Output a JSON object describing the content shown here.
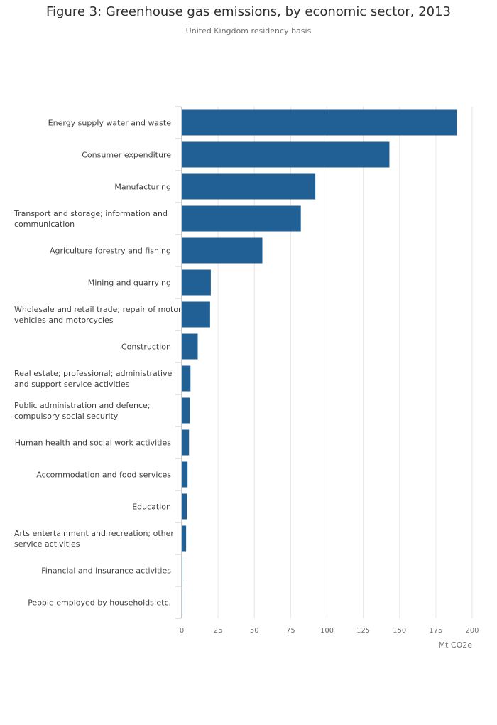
{
  "title": "Figure 3: Greenhouse gas emissions, by economic sector, 2013",
  "subtitle": "United Kingdom residency basis",
  "colors": {
    "bar": "#206095",
    "grid": "#e6e6e6",
    "axis": "#c8c8c8",
    "text": "#414042"
  },
  "chart_data": {
    "type": "bar",
    "orientation": "horizontal",
    "title": "Figure 3: Greenhouse gas emissions, by economic sector, 2013",
    "subtitle": "United Kingdom residency basis",
    "categories": [
      "Energy supply water and waste",
      "Consumer expenditure",
      "Manufacturing",
      "Transport and storage; information and communication",
      "Agriculture forestry and fishing",
      "Mining and quarrying",
      "Wholesale and retail trade; repair of motor vehicles and motorcycles",
      "Construction",
      "Real estate; professional; administrative and support service activities",
      "Public administration and defence; compulsory social security",
      "Human health and social work activities",
      "Accommodation and food services",
      "Education",
      "Arts entertainment and recreation; other service activities",
      "Financial and insurance activities",
      "People employed by households etc."
    ],
    "category_lines": [
      [
        "Energy supply water and waste"
      ],
      [
        "Consumer expenditure"
      ],
      [
        "Manufacturing"
      ],
      [
        "Transport and storage; information and",
        "communication"
      ],
      [
        "Agriculture forestry and fishing"
      ],
      [
        "Mining and quarrying"
      ],
      [
        "Wholesale and retail trade; repair of motor",
        "vehicles and motorcycles"
      ],
      [
        "Construction"
      ],
      [
        "Real estate; professional; administrative",
        "and support service activities"
      ],
      [
        "Public administration and defence;",
        "compulsory social security"
      ],
      [
        "Human health and social work activities"
      ],
      [
        "Accommodation and food services"
      ],
      [
        "Education"
      ],
      [
        "Arts entertainment and recreation; other",
        "service activities"
      ],
      [
        "Financial and insurance activities"
      ],
      [
        "People employed by households etc."
      ]
    ],
    "values": [
      189.5,
      143,
      92,
      82,
      55.5,
      20,
      19.5,
      11,
      6,
      5.5,
      5,
      4,
      3.5,
      3,
      0.3,
      0.1
    ],
    "xlabel": "Mt CO2e",
    "ylabel": "",
    "xlim": [
      0,
      200
    ],
    "xticks": [
      0,
      25,
      50,
      75,
      100,
      125,
      150,
      175,
      200
    ],
    "grid": true,
    "legend": "none"
  }
}
